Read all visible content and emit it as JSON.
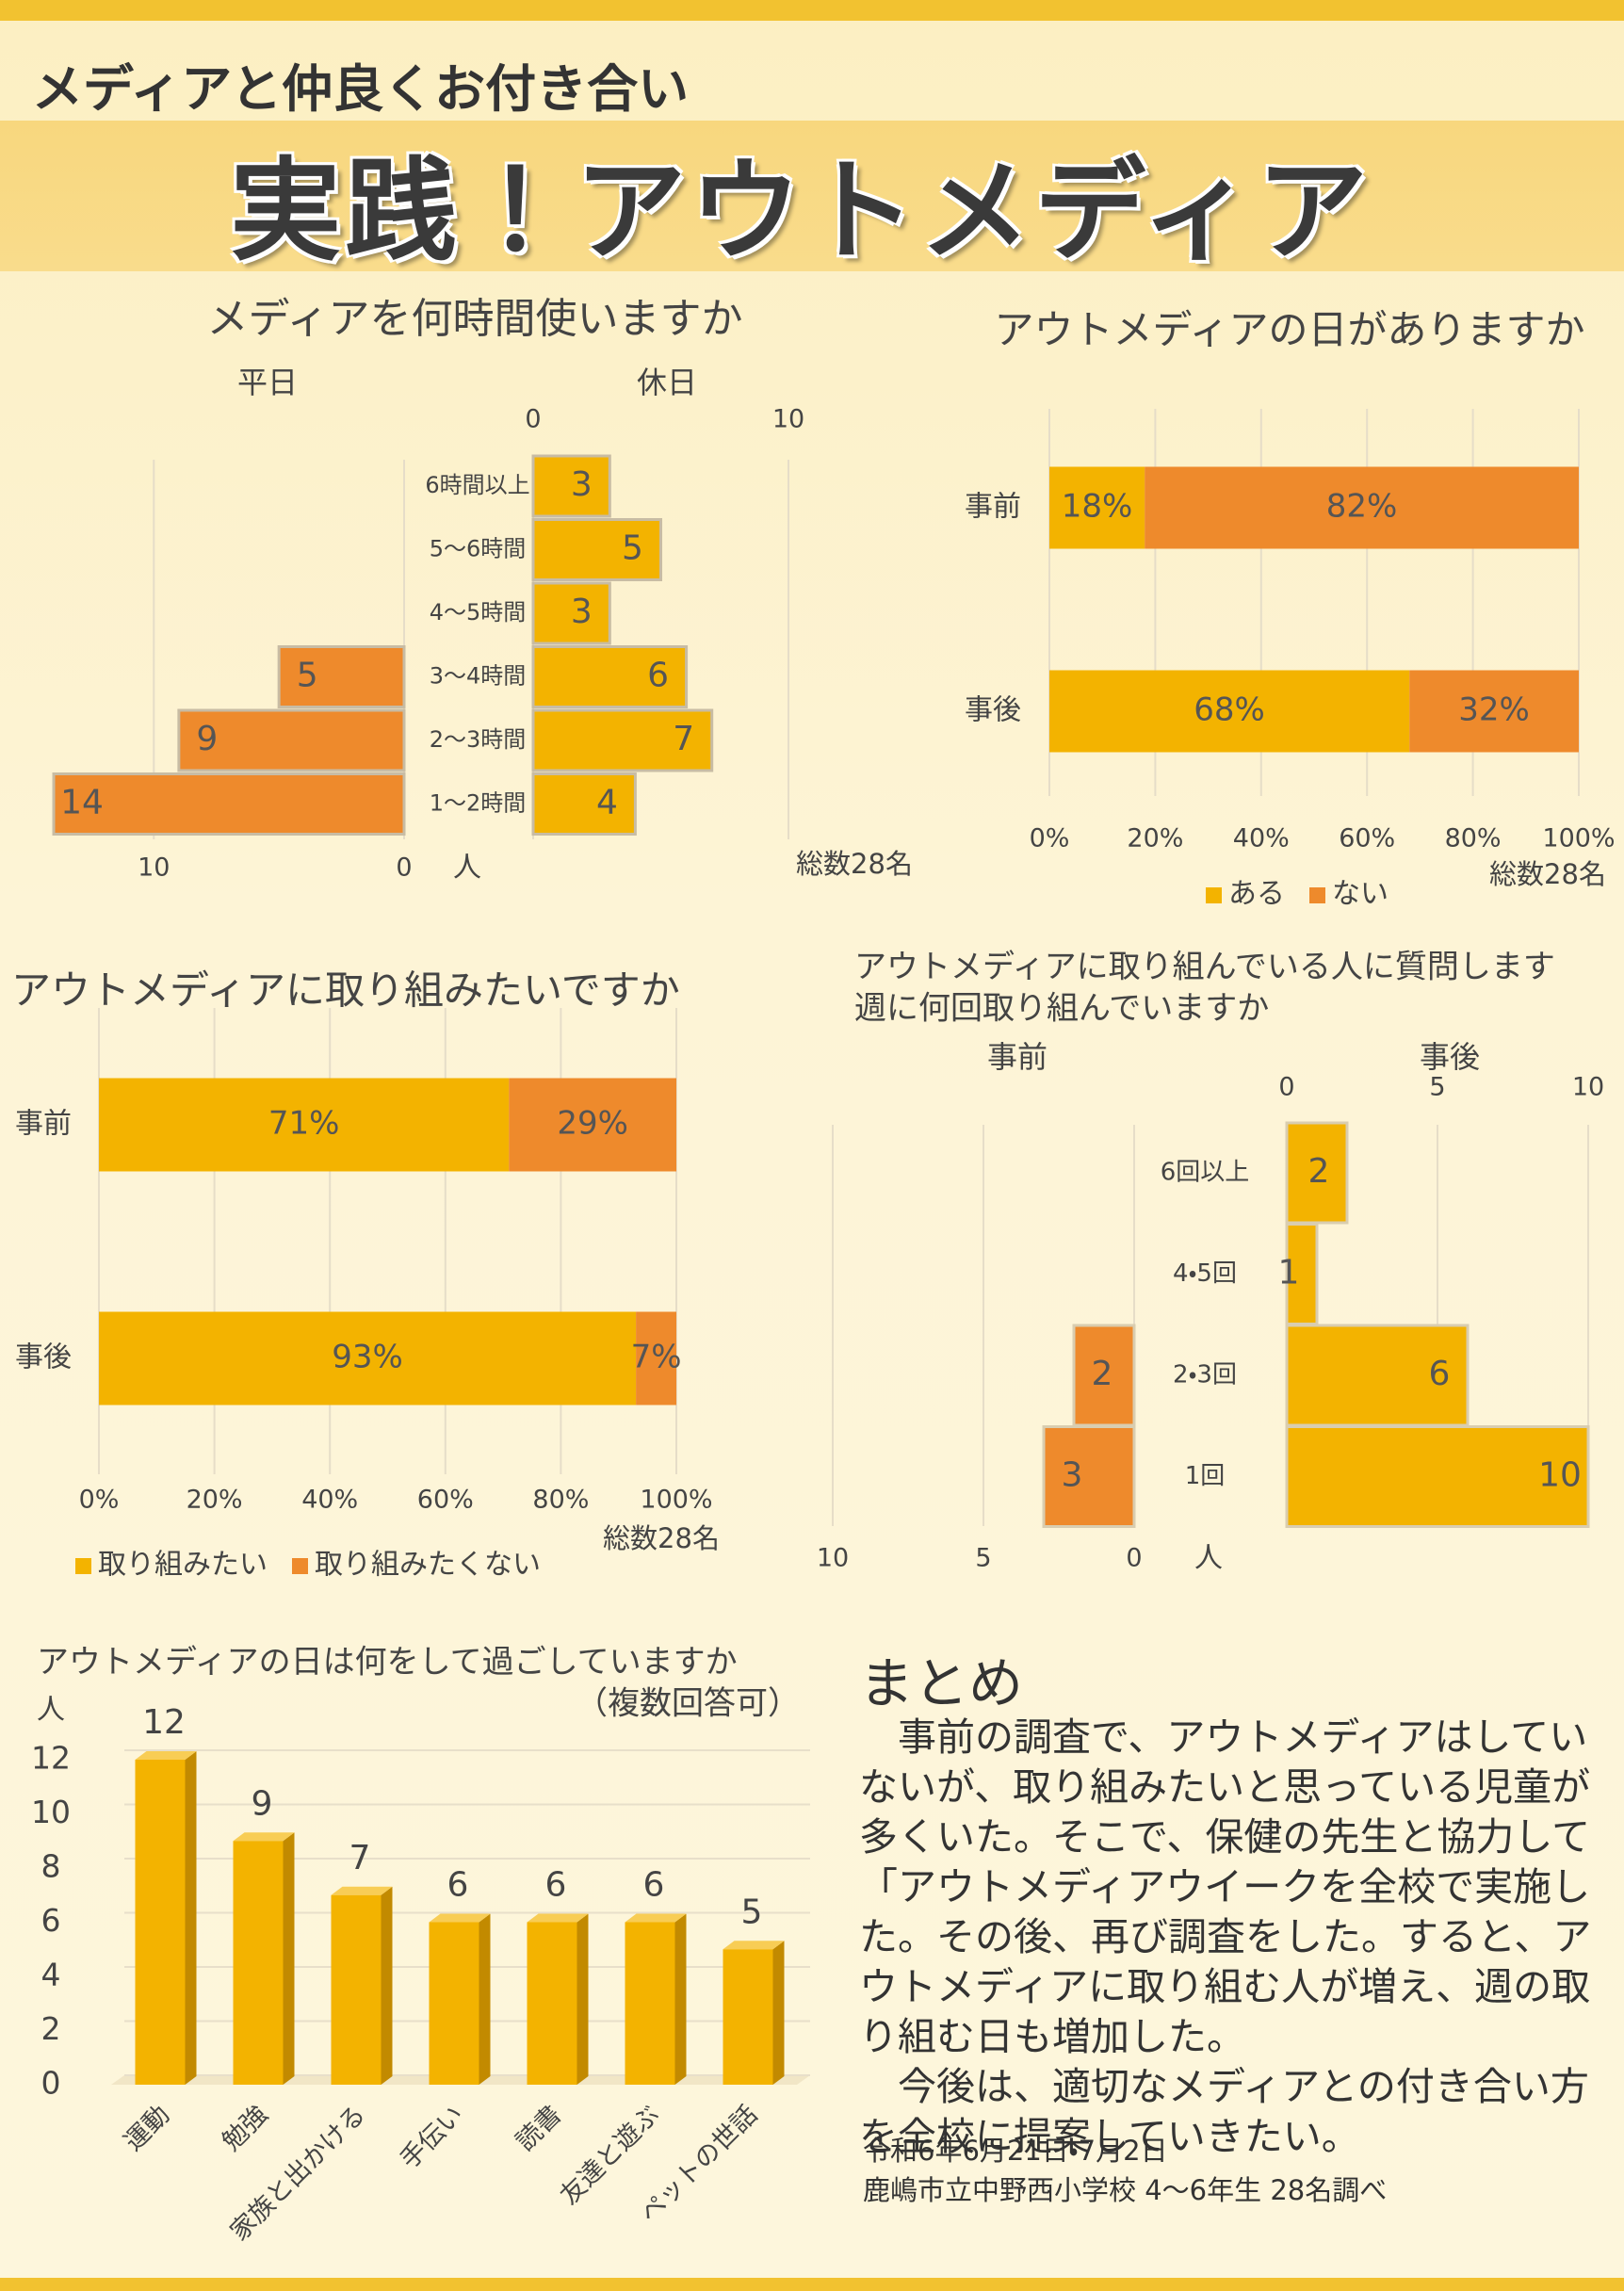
{
  "header": {
    "subtitle": "メディアと仲良くお付き合い",
    "title": "実践！アウトメディア"
  },
  "chart_data": [
    {
      "type": "butterfly",
      "title": "メディアを何時間使いますか",
      "unit": "人",
      "note": "総数28名",
      "categories": [
        "6時間以上",
        "5～6時間",
        "4～5時間",
        "3～4時間",
        "2～3時間",
        "1～2時間"
      ],
      "series": [
        {
          "name": "平日",
          "color": "#ee8a2c",
          "values": [
            null,
            null,
            null,
            5,
            9,
            14
          ],
          "xlim": [
            0,
            14
          ],
          "xticks": [
            0,
            10
          ]
        },
        {
          "name": "休日",
          "color": "#f3b300",
          "values": [
            3,
            5,
            3,
            6,
            7,
            4
          ],
          "xlim": [
            0,
            10
          ],
          "xticks": [
            0,
            10
          ]
        }
      ]
    },
    {
      "type": "stacked-bar",
      "title": "アウトメディアの日がありますか",
      "note": "総数28名",
      "grid": true,
      "legend": "bottom",
      "categories": [
        "事前",
        "事後"
      ],
      "series": [
        {
          "name": "ある",
          "color": "#f3b300",
          "values": [
            18,
            68
          ],
          "value_labels": [
            "18%",
            "68%"
          ]
        },
        {
          "name": "ない",
          "color": "#ee8a2c",
          "values": [
            82,
            32
          ],
          "value_labels": [
            "82%",
            "32%"
          ]
        }
      ],
      "xlim": [
        0,
        100
      ],
      "xticks": [
        {
          "value": 0,
          "label": "0%"
        },
        {
          "value": 20,
          "label": "20%"
        },
        {
          "value": 40,
          "label": "40%"
        },
        {
          "value": 60,
          "label": "60%"
        },
        {
          "value": 80,
          "label": "80%"
        },
        {
          "value": 100,
          "label": "100%"
        }
      ]
    },
    {
      "type": "stacked-bar",
      "title": "アウトメディアに取り組みたいですか",
      "note": "総数28名",
      "grid": true,
      "legend": "bottom",
      "categories": [
        "事前",
        "事後"
      ],
      "series": [
        {
          "name": "取り組みたい",
          "color": "#f3b300",
          "values": [
            71,
            93
          ],
          "value_labels": [
            "71%",
            "93%"
          ]
        },
        {
          "name": "取り組みたくない",
          "color": "#ee8a2c",
          "values": [
            29,
            7
          ],
          "value_labels": [
            "29%",
            "7%"
          ]
        }
      ],
      "xlim": [
        0,
        100
      ],
      "xticks": [
        {
          "value": 0,
          "label": "0%"
        },
        {
          "value": 20,
          "label": "20%"
        },
        {
          "value": 40,
          "label": "40%"
        },
        {
          "value": 60,
          "label": "60%"
        },
        {
          "value": 80,
          "label": "80%"
        },
        {
          "value": 100,
          "label": "100%"
        }
      ]
    },
    {
      "type": "butterfly",
      "title": "アウトメディアに取り組んでいる人に質問します",
      "subtitle": "週に何回取り組んでいますか",
      "unit": "人",
      "categories": [
        "6回以上",
        "4・5回",
        "2・3回",
        "1回"
      ],
      "series": [
        {
          "name": "事前",
          "color": "#ee8a2c",
          "values": [
            null,
            null,
            2,
            3
          ],
          "xlim": [
            0,
            10
          ],
          "xticks": [
            0,
            5,
            10
          ]
        },
        {
          "name": "事後",
          "color": "#f3b300",
          "values": [
            2,
            1,
            6,
            10
          ],
          "xlim": [
            0,
            10
          ],
          "xticks": [
            0,
            5,
            10
          ]
        }
      ]
    },
    {
      "type": "bar3d",
      "title": "アウトメディアの日は何をして過ごしていますか",
      "subtitle": "（複数回答可）",
      "ylabel": "人",
      "categories": [
        "運動",
        "勉強",
        "家族と出かける",
        "手伝い",
        "読書",
        "友達と遊ぶ",
        "ペットの世話"
      ],
      "values": [
        12,
        9,
        7,
        6,
        6,
        6,
        5
      ],
      "color": "#f3b300",
      "ylim": [
        0,
        12
      ],
      "yticks": [
        0,
        2,
        4,
        6,
        8,
        10,
        12
      ],
      "grid": true
    }
  ],
  "summary": {
    "heading": "まとめ",
    "paragraphs": [
      "事前の調査で、アウトメディアはしていないが、取り組みたいと思っている児童が多くいた。そこで、保健の先生と協力して「アウトメディアウイークを全校で実施した。その後、再び調査をした。すると、アウトメディアに取り組む人が増え、週の取り組む日も増加した。",
      "今後は、適切なメディアとの付き合い方を全校に提案していきたい。"
    ],
    "footer": [
      "令和6年6月21日・7月2日",
      "鹿嶋市立中野西小学校 4～6年生 28名調べ"
    ]
  }
}
